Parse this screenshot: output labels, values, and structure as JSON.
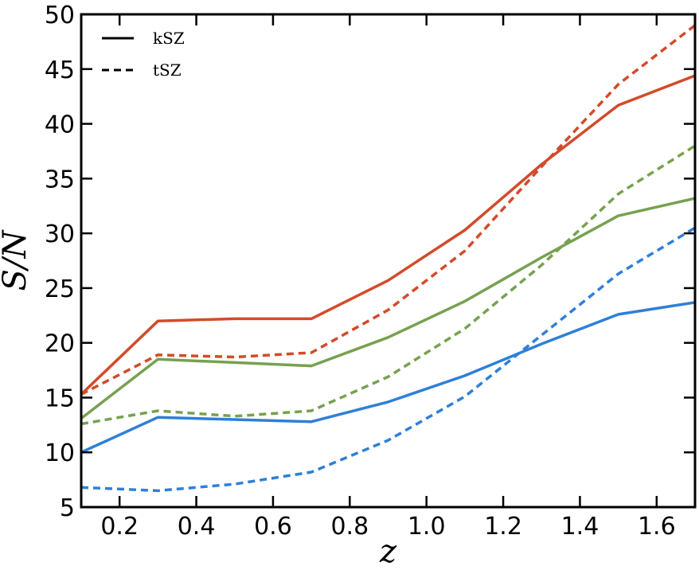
{
  "chart_data": {
    "type": "line",
    "title": "",
    "xlabel": "z",
    "ylabel": "S/N",
    "xlim": [
      0.1,
      1.7
    ],
    "ylim": [
      5,
      50
    ],
    "xticks": [
      0.2,
      0.4,
      0.6,
      0.8,
      1.0,
      1.2,
      1.4,
      1.6
    ],
    "xtick_labels": [
      "0.2",
      "0.4",
      "0.6",
      "0.8",
      "1.0",
      "1.2",
      "1.4",
      "1.6"
    ],
    "yticks": [
      5,
      10,
      15,
      20,
      25,
      30,
      35,
      40,
      45,
      50
    ],
    "ytick_labels": [
      "5",
      "10",
      "15",
      "20",
      "25",
      "30",
      "35",
      "40",
      "45",
      "50"
    ],
    "grid": false,
    "legend": {
      "placement": "top-left",
      "entries": [
        {
          "label": "kSZ",
          "style": "solid"
        },
        {
          "label": "tSZ",
          "style": "dashed"
        }
      ]
    },
    "x": [
      0.1,
      0.3,
      0.5,
      0.7,
      0.9,
      1.1,
      1.3,
      1.5,
      1.7
    ],
    "series": [
      {
        "color": "#d24b2a",
        "style": "solid",
        "values": [
          15.3,
          22.0,
          22.2,
          22.2,
          25.7,
          30.3,
          36.3,
          41.7,
          44.4
        ]
      },
      {
        "color": "#d24b2a",
        "style": "dashed",
        "values": [
          15.3,
          18.9,
          18.7,
          19.1,
          23.0,
          28.4,
          36.1,
          43.6,
          49.0
        ]
      },
      {
        "color": "#77a150",
        "style": "solid",
        "values": [
          13.1,
          18.5,
          18.2,
          17.9,
          20.5,
          23.8,
          27.8,
          31.6,
          33.2
        ]
      },
      {
        "color": "#77a150",
        "style": "dashed",
        "values": [
          12.6,
          13.8,
          13.3,
          13.8,
          16.9,
          21.3,
          27.1,
          33.6,
          38.0
        ]
      },
      {
        "color": "#2f7fd8",
        "style": "solid",
        "values": [
          10.0,
          13.2,
          13.0,
          12.8,
          14.6,
          17.0,
          19.9,
          22.6,
          23.7
        ]
      },
      {
        "color": "#2f7fd8",
        "style": "dashed",
        "values": [
          6.8,
          6.5,
          7.1,
          8.2,
          11.1,
          15.1,
          20.7,
          26.3,
          30.5
        ]
      }
    ]
  }
}
